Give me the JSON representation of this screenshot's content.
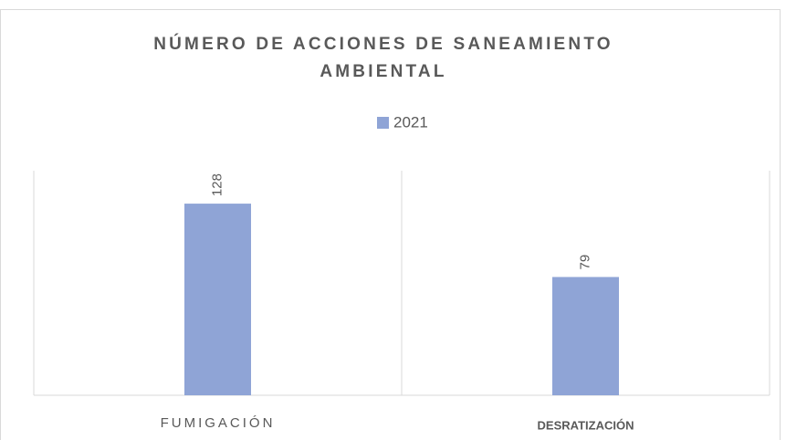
{
  "chart_data": {
    "type": "bar",
    "title": "NÚMERO DE ACCIONES DE SANEAMIENTO AMBIENTAL",
    "categories": [
      "FUMIGACIÓN",
      "DESRATIZACIÓN"
    ],
    "series": [
      {
        "name": "2021",
        "color": "#8fa4d6",
        "values": [
          128,
          79
        ]
      }
    ],
    "ylim": [
      0,
      150
    ],
    "legend": "top"
  }
}
